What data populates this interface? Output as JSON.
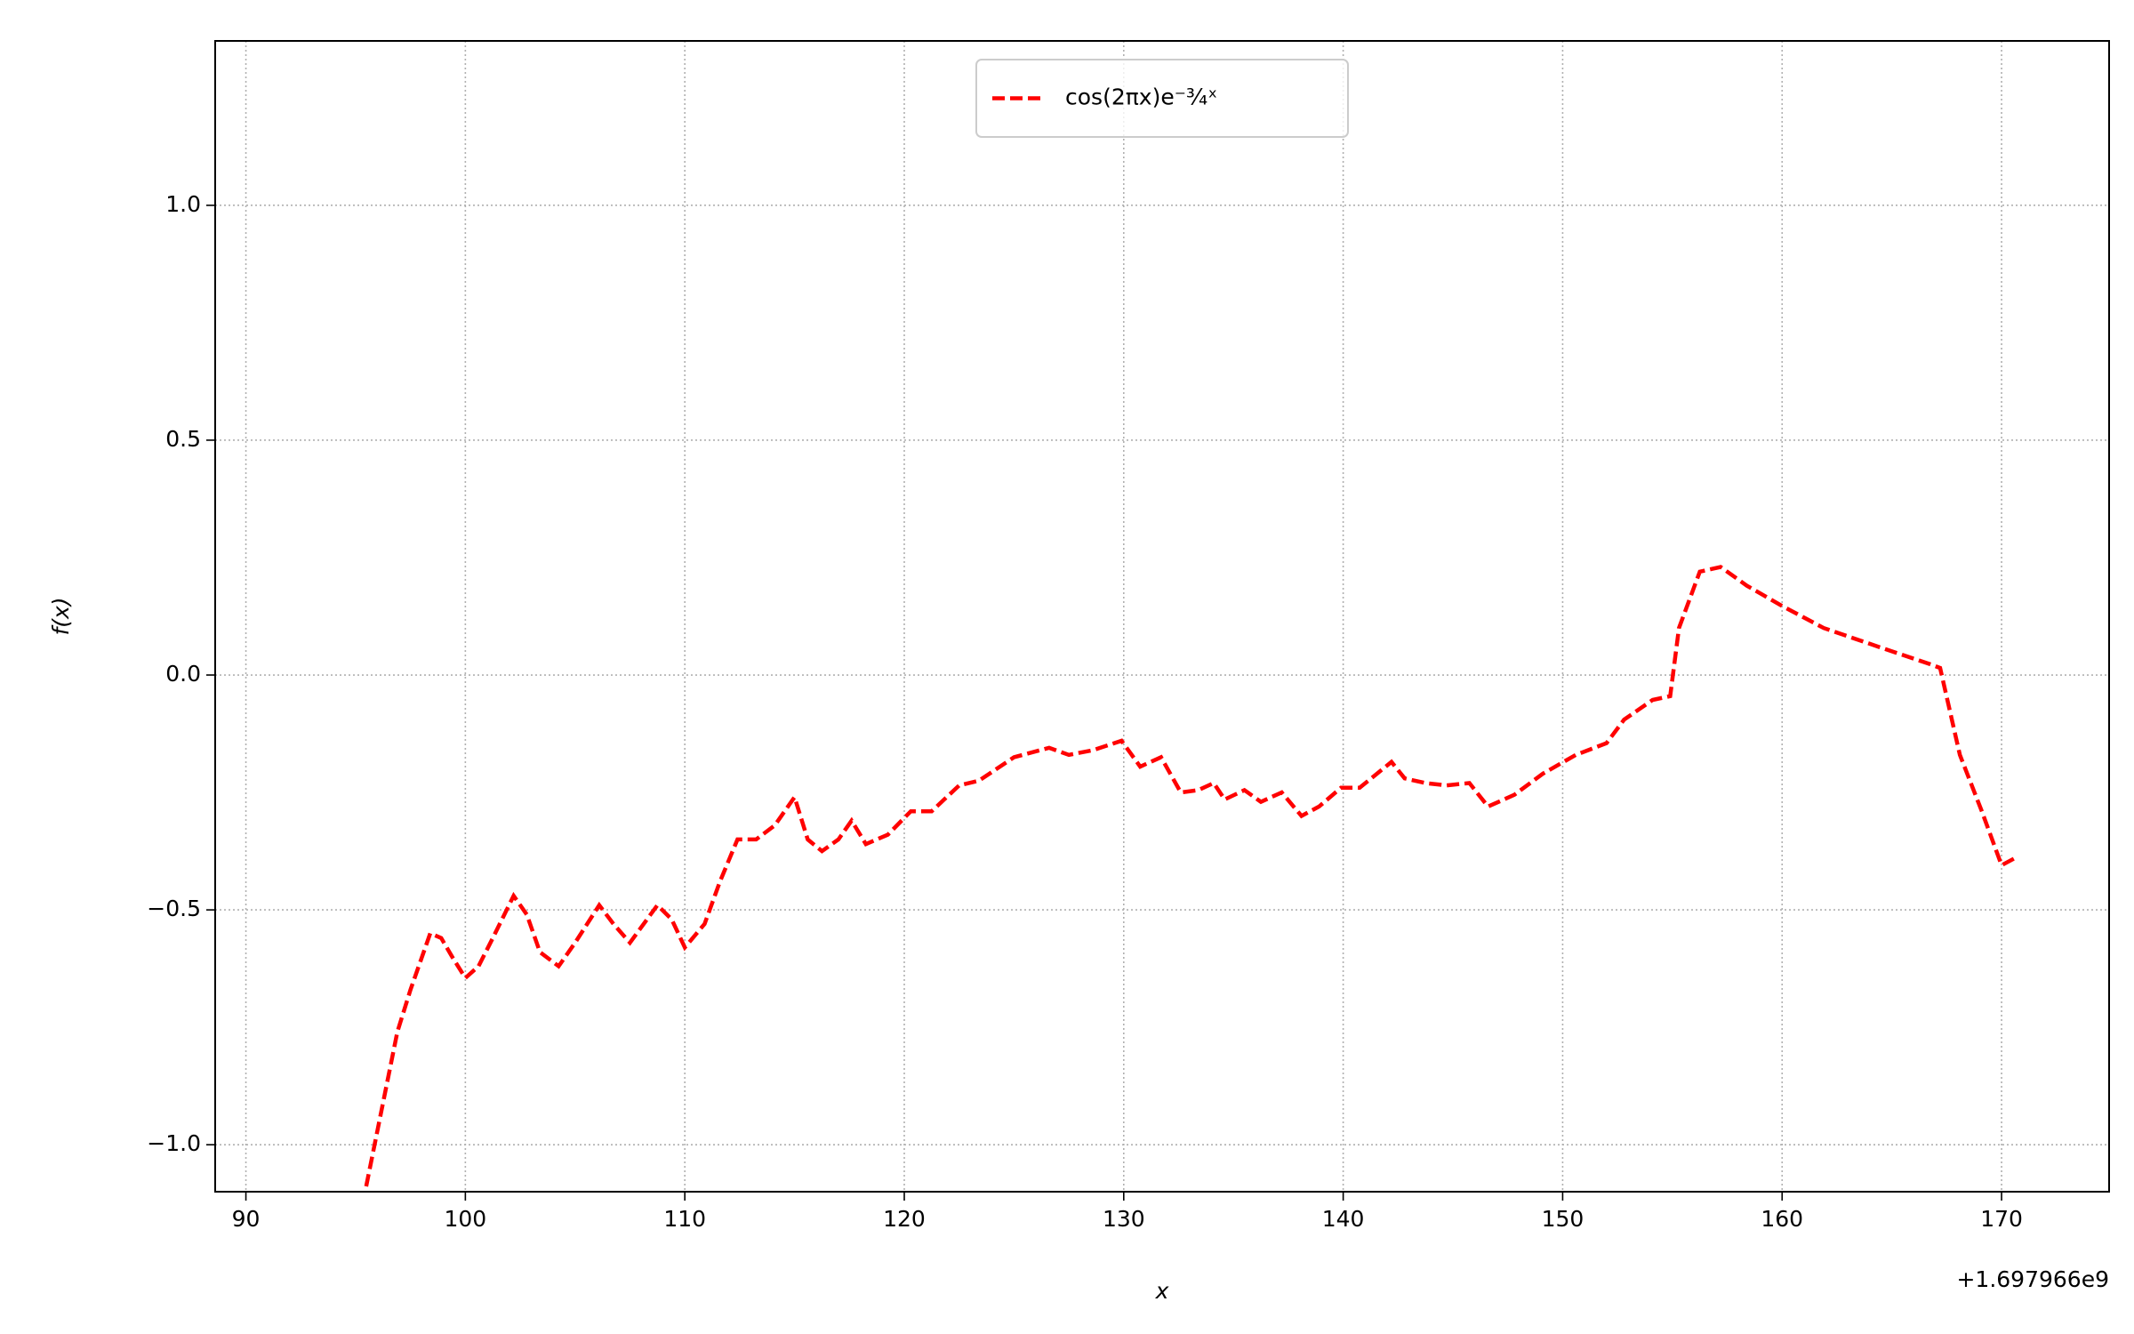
{
  "chart_data": {
    "type": "line",
    "xlabel": "x",
    "ylabel": "f(x)",
    "x_offset_label": "+1.697966e9",
    "x": [
      95.0,
      96.9,
      97.5,
      98.4,
      98.9,
      99.4,
      100.0,
      100.6,
      101.25,
      102.2,
      102.8,
      103.4,
      104.25,
      105.0,
      106.1,
      106.75,
      107.5,
      108.75,
      109.4,
      110.0,
      110.9,
      111.6,
      112.4,
      113.25,
      114.1,
      115.0,
      115.6,
      116.25,
      117.0,
      117.6,
      118.25,
      119.25,
      120.3,
      121.25,
      122.5,
      123.4,
      125.0,
      126.6,
      127.5,
      128.6,
      129.9,
      130.75,
      131.7,
      132.6,
      133.4,
      134.1,
      134.6,
      135.5,
      136.25,
      137.2,
      138.1,
      138.9,
      139.9,
      140.75,
      142.2,
      142.8,
      143.75,
      144.7,
      145.75,
      146.6,
      147.8,
      149.1,
      150.6,
      152.0,
      152.8,
      154.1,
      154.9,
      155.3,
      156.25,
      157.2,
      158.4,
      160.0,
      161.9,
      164.4,
      166.75,
      167.2,
      168.1,
      169.1,
      170.0,
      170.6
    ],
    "series": [
      {
        "name": "cos(2πx)e⁻³⁄₄ˣ",
        "color": "#ff0000",
        "values": [
          -1.2,
          -0.76,
          -0.67,
          -0.55,
          -0.56,
          -0.6,
          -0.645,
          -0.62,
          -0.56,
          -0.47,
          -0.51,
          -0.59,
          -0.62,
          -0.57,
          -0.49,
          -0.53,
          -0.57,
          -0.49,
          -0.52,
          -0.58,
          -0.53,
          -0.44,
          -0.35,
          -0.35,
          -0.32,
          -0.26,
          -0.35,
          -0.375,
          -0.35,
          -0.31,
          -0.36,
          -0.34,
          -0.29,
          -0.29,
          -0.235,
          -0.225,
          -0.175,
          -0.155,
          -0.17,
          -0.16,
          -0.14,
          -0.195,
          -0.175,
          -0.25,
          -0.245,
          -0.23,
          -0.265,
          -0.245,
          -0.27,
          -0.25,
          -0.3,
          -0.28,
          -0.24,
          -0.24,
          -0.185,
          -0.22,
          -0.23,
          -0.235,
          -0.23,
          -0.28,
          -0.255,
          -0.21,
          -0.17,
          -0.145,
          -0.095,
          -0.053,
          -0.045,
          0.1,
          0.22,
          0.23,
          0.19,
          0.147,
          0.1,
          0.06,
          0.023,
          0.015,
          -0.17,
          -0.29,
          -0.405,
          -0.39
        ]
      }
    ],
    "xlim": [
      88.6,
      174.9
    ],
    "xticks": [
      90,
      100,
      110,
      120,
      130,
      140,
      150,
      160,
      170
    ],
    "ylim": [
      -1.1,
      1.35
    ],
    "yticks": [
      {
        "value": -1.0,
        "label": "−1.0"
      },
      {
        "value": -0.5,
        "label": "−0.5"
      },
      {
        "value": 0.0,
        "label": "0.0"
      },
      {
        "value": 0.5,
        "label": "0.5"
      },
      {
        "value": 1.0,
        "label": "1.0"
      }
    ],
    "grid": true,
    "legend": "upper center",
    "linestyle": "dashed"
  }
}
